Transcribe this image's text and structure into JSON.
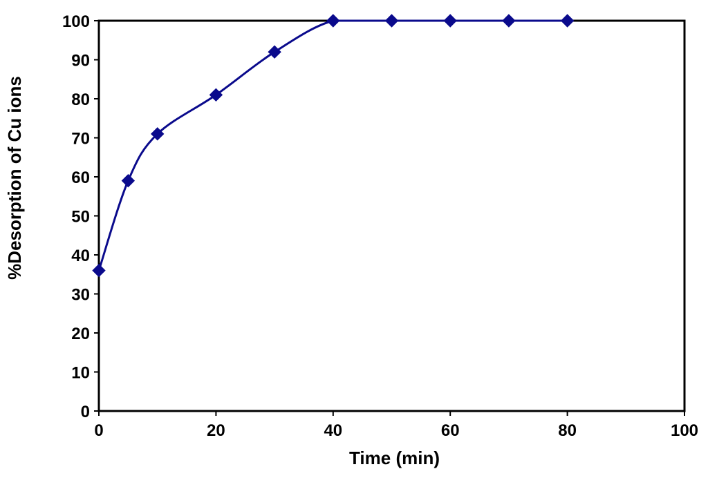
{
  "chart_data": {
    "type": "line",
    "title": "",
    "xlabel": "Time (min)",
    "ylabel": "%Desorption of Cu ions",
    "xlim": [
      0,
      100
    ],
    "ylim": [
      0,
      100
    ],
    "x_ticks": [
      "0",
      "20",
      "40",
      "60",
      "80",
      "100"
    ],
    "y_ticks": [
      "0",
      "10",
      "20",
      "30",
      "40",
      "50",
      "60",
      "70",
      "80",
      "90",
      "100"
    ],
    "grid": false,
    "legend": "none",
    "series": [
      {
        "color": "#0a0a8c",
        "marker": "diamond",
        "smooth": true,
        "x": [
          0,
          5,
          10,
          20,
          30,
          40,
          50,
          60,
          70,
          80
        ],
        "y": [
          36,
          59,
          71,
          81,
          92,
          100,
          100,
          100,
          100,
          100
        ]
      }
    ]
  }
}
